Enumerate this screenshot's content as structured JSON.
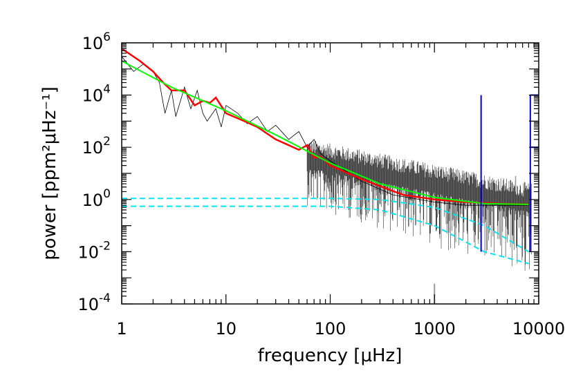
{
  "chart_data": {
    "type": "line",
    "title": "",
    "xlabel": "frequency [μHz]",
    "ylabel": "power [ppm²μHz⁻¹]",
    "x_scale": "log",
    "y_scale": "log",
    "xlim": [
      1,
      10000
    ],
    "ylim": [
      0.0001,
      1000000
    ],
    "grid": false,
    "legend": "none",
    "x_tick_labels": [
      {
        "value": 1,
        "label": "1"
      },
      {
        "value": 10,
        "label": "10"
      },
      {
        "value": 100,
        "label": "100"
      },
      {
        "value": 1000,
        "label": "1000"
      },
      {
        "value": 10000,
        "label": "10000"
      }
    ],
    "y_tick_labels": [
      {
        "value": 0.0001,
        "base": "10",
        "exp": "-4"
      },
      {
        "value": 0.01,
        "base": "10",
        "exp": "-2"
      },
      {
        "value": 1,
        "base": "10",
        "exp": "0"
      },
      {
        "value": 100,
        "base": "10",
        "exp": "2"
      },
      {
        "value": 10000,
        "base": "10",
        "exp": "4"
      },
      {
        "value": 1000000,
        "base": "10",
        "exp": "6"
      }
    ],
    "series": [
      {
        "style": "raw",
        "color": "#000000",
        "x": [
          1.0,
          1.3,
          1.6,
          2.0,
          2.3,
          2.6,
          3.0,
          3.3,
          4.0,
          4.6,
          5.3,
          6.0,
          6.6,
          8.0,
          9.0,
          10.0,
          13.0,
          16.0,
          20.0,
          25.0,
          30.0,
          40.0,
          50.0,
          60.0,
          70.0,
          80.0,
          100.0,
          200.0,
          400.0,
          1000.0,
          2000.0,
          4000.0,
          8000.0
        ],
        "y": [
          300000,
          80000,
          150000,
          80000,
          30000,
          2000,
          15000,
          1500,
          20000,
          3000,
          15000,
          2000,
          1000,
          3000,
          600,
          4000,
          2000,
          800,
          1500,
          400,
          700,
          200,
          400,
          100,
          200,
          60,
          30,
          5,
          1.5,
          0.8,
          0.6,
          0.6,
          0.6
        ],
        "noise_band": {
          "x_start": 60,
          "x_end": 8500,
          "upper": 3,
          "lower": 0.001
        }
      },
      {
        "style": "raw-gray",
        "color": "#999999",
        "x": [
          1000,
          6000
        ],
        "y": [
          0.0001,
          10
        ]
      },
      {
        "style": "binned",
        "color": "#ff0000",
        "x": [
          1.0,
          1.5,
          2.0,
          2.5,
          3.0,
          4.0,
          5.0,
          6.0,
          7.0,
          8.0,
          10.0,
          15.0,
          20.0,
          30.0,
          40.0,
          50.0,
          60.0,
          70.0,
          80.0,
          100.0,
          200.0,
          500.0,
          1000.0,
          2000.0,
          4000.0,
          8000.0
        ],
        "y": [
          600000,
          200000,
          80000,
          30000,
          15000,
          15000,
          4000,
          6000,
          5000,
          8000,
          2000,
          1000,
          600,
          200,
          120,
          80,
          120,
          40,
          45,
          20,
          6,
          1.5,
          1.0,
          0.8,
          0.7,
          0.65
        ]
      },
      {
        "style": "fit",
        "color": "#00ff00",
        "x": [
          1.0,
          3.0,
          10.0,
          30.0,
          100.0,
          300.0,
          1000.0,
          3000.0,
          8000.0
        ],
        "y": [
          200000,
          20000,
          2500,
          300,
          25,
          4,
          1.2,
          0.7,
          0.65
        ]
      },
      {
        "style": "component-dashed",
        "color": "#00e5ee",
        "x": [
          1.0,
          100.0,
          300.0,
          1000.0,
          3000.0,
          8000.0
        ],
        "y": [
          1.1,
          1.1,
          1.0,
          0.5,
          0.1,
          0.01
        ]
      },
      {
        "style": "component-dashed",
        "color": "#00e5ee",
        "x": [
          1.0,
          100.0,
          300.0,
          1000.0,
          3000.0,
          8000.0
        ],
        "y": [
          0.55,
          0.55,
          0.4,
          0.1,
          0.01,
          0.0035
        ]
      }
    ],
    "vertical_lines": [
      {
        "color": "#0000cc",
        "x": 2800,
        "y_from": 0.01,
        "y_to": 10000
      },
      {
        "color": "#0000cc",
        "x": 8300,
        "y_from": 0.01,
        "y_to": 10000
      }
    ]
  }
}
